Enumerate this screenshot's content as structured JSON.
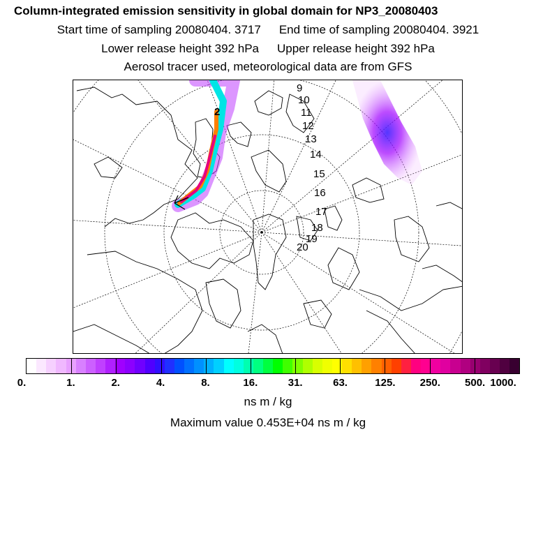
{
  "header": {
    "title": "Column-integrated emission sensitivity in global domain for NP3_20080403",
    "start_label": "Start time of sampling 20080404.  3717",
    "end_label": "End time of sampling 20080404.  3921",
    "lower_label": "Lower release height  392 hPa",
    "upper_label": "Upper release height  392 hPa",
    "tracer_label": "Aerosol tracer used, meteorological data are from GFS"
  },
  "map": {
    "projection": "polar stereographic (Northern Hemisphere)",
    "time_labels": [
      "2",
      "9",
      "10",
      "11",
      "12",
      "13",
      "14",
      "15",
      "16",
      "17",
      "18",
      "19",
      "20"
    ],
    "colors": {
      "coastline": "#000000",
      "grid": "#000000",
      "plume_core": "#e6007e",
      "plume_edge": "#00e5e5",
      "faint_plume": "#c040f0"
    }
  },
  "colorbar": {
    "tick_labels": [
      "0.",
      "1.",
      "2.",
      "4.",
      "8.",
      "16.",
      "31.",
      "63.",
      "125.",
      "250.",
      "500.",
      "1000."
    ],
    "colors": [
      "#ffffff",
      "#fbe8ff",
      "#f6d0ff",
      "#f0b8ff",
      "#e8a0ff",
      "#d880ff",
      "#cc60ff",
      "#c040ff",
      "#b020ff",
      "#a000ff",
      "#8c00ff",
      "#7000ff",
      "#5000ff",
      "#3010ff",
      "#2030ff",
      "#0050ff",
      "#0070ff",
      "#0090ff",
      "#00b0ff",
      "#00d0ff",
      "#00ffff",
      "#00ffe0",
      "#00ffb0",
      "#00ff80",
      "#00ff40",
      "#00ff00",
      "#40ff00",
      "#80ff00",
      "#b0ff00",
      "#d8ff00",
      "#f0ff00",
      "#ffff00",
      "#ffe000",
      "#ffc000",
      "#ffa000",
      "#ff8000",
      "#ff6000",
      "#ff4000",
      "#ff2040",
      "#ff0080",
      "#ff0090",
      "#f000a0",
      "#e000a0",
      "#c80090",
      "#b00080",
      "#980070",
      "#800060",
      "#680050",
      "#500040",
      "#380030"
    ],
    "units": "ns m / kg",
    "max_label": "Maximum value  0.453E+04 ns m / kg"
  }
}
